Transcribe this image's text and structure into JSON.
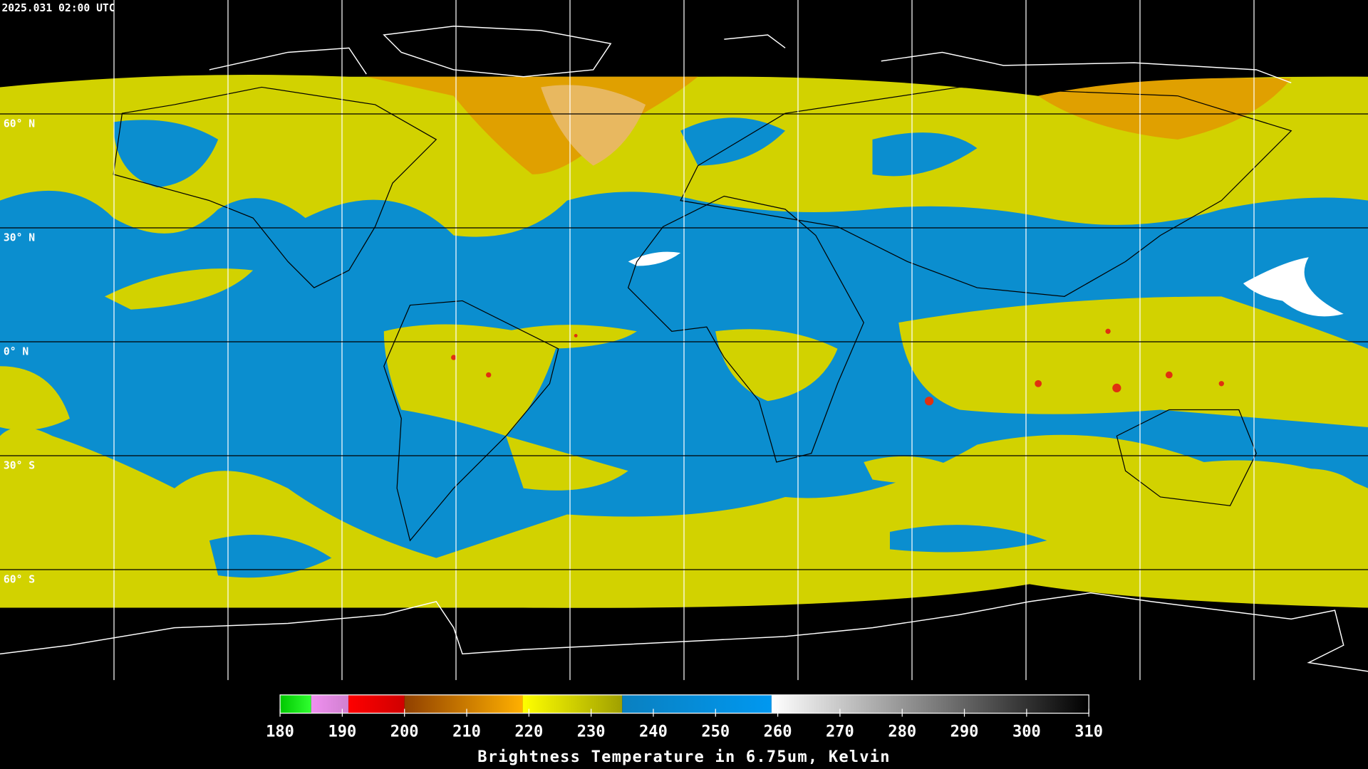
{
  "timestamp": "2025.031 02:00 UTC",
  "lat_lines": [
    {
      "value": 60,
      "label": "60° N"
    },
    {
      "value": 30,
      "label": "30° N"
    },
    {
      "value": 0,
      "label": "0° N"
    },
    {
      "value": -30,
      "label": "30° S"
    },
    {
      "value": -60,
      "label": "60° S"
    }
  ],
  "lon_lines": [
    -150,
    -120,
    -90,
    -60,
    -30,
    0,
    30,
    60,
    90,
    120,
    150
  ],
  "colorbar": {
    "range": [
      180,
      310
    ],
    "ticks": [
      180,
      190,
      200,
      210,
      220,
      230,
      240,
      250,
      260,
      270,
      280,
      290,
      300,
      310
    ],
    "label": "Brightness Temperature in 6.75um, Kelvin",
    "bands": [
      {
        "from": 180,
        "to": 185,
        "start": "#00c800",
        "end": "#30ff30"
      },
      {
        "from": 185,
        "to": 191,
        "start": "#f090f0",
        "end": "#d080d0"
      },
      {
        "from": 191,
        "to": 200,
        "start": "#ff0000",
        "end": "#d00000"
      },
      {
        "from": 200,
        "to": 219,
        "start": "#904000",
        "end": "#ffb000"
      },
      {
        "from": 219,
        "to": 235,
        "start": "#ffff00",
        "end": "#a0a000"
      },
      {
        "from": 235,
        "to": 259,
        "start": "#0a80c0",
        "end": "#0098f0"
      },
      {
        "from": 259,
        "to": 310,
        "start": "#ffffff",
        "end": "#000000"
      }
    ]
  }
}
